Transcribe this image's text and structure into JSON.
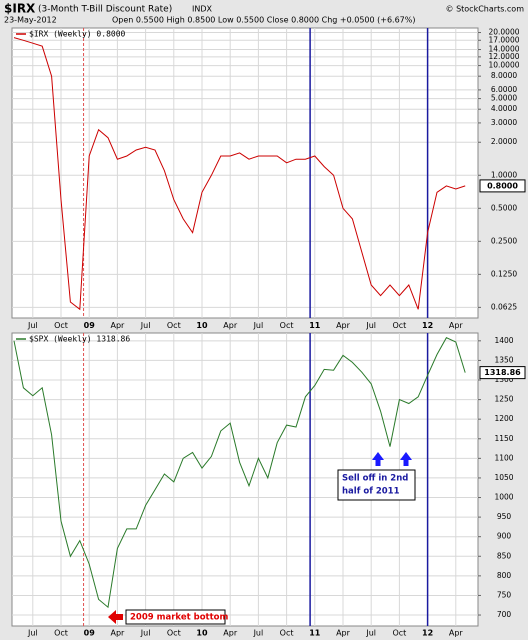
{
  "header": {
    "symbol": "$IRX",
    "name": "(3-Month T-Bill Discount Rate)",
    "exchange": "INDX",
    "date": "23-May-2012",
    "quote": "Open 0.5500  High 0.8500  Low 0.5500  Close 0.8000  Chg +0.0500 (+6.67%)",
    "source": "© StockCharts.com"
  },
  "chart_data": [
    {
      "type": "line",
      "log_scale": true,
      "grid": true,
      "categories": [
        null,
        null,
        "Jul",
        null,
        null,
        "Oct",
        null,
        null,
        "09",
        null,
        null,
        "Apr",
        null,
        null,
        "Jul",
        null,
        null,
        "Oct",
        null,
        null,
        "10",
        null,
        null,
        "Apr",
        null,
        null,
        "Jul",
        null,
        null,
        "Oct",
        null,
        null,
        "11",
        null,
        null,
        "Apr",
        null,
        null,
        "Jul",
        null,
        null,
        "Oct",
        null,
        null,
        "12",
        null,
        null,
        "Apr",
        null
      ],
      "series": [
        {
          "name": "$IRX (Weekly) 0.8000",
          "color": "#cc0000",
          "values": [
            18,
            17,
            16,
            15,
            8,
            0.6,
            0.07,
            0.06,
            1.5,
            2.6,
            2.2,
            1.4,
            1.5,
            1.7,
            1.8,
            1.7,
            1.1,
            0.6,
            0.4,
            0.3,
            0.7,
            1.0,
            1.5,
            1.5,
            1.6,
            1.4,
            1.5,
            1.5,
            1.5,
            1.3,
            1.4,
            1.4,
            1.5,
            1.2,
            1.0,
            0.5,
            0.4,
            0.2,
            0.1,
            0.08,
            0.1,
            0.08,
            0.1,
            0.06,
            0.3,
            0.7,
            0.8,
            0.75,
            0.8
          ],
          "last_label": "0.8000"
        }
      ],
      "ylim": [
        0.05,
        22
      ],
      "yticks": [
        {
          "value": 20,
          "label": "20.0000"
        },
        {
          "value": 17,
          "label": "17.0000"
        },
        {
          "value": 14,
          "label": "14.0000"
        },
        {
          "value": 12,
          "label": "12.0000"
        },
        {
          "value": 10,
          "label": "10.0000"
        },
        {
          "value": 8,
          "label": "8.0000"
        },
        {
          "value": 6,
          "label": "6.0000"
        },
        {
          "value": 5,
          "label": "5.0000"
        },
        {
          "value": 4,
          "label": "4.0000"
        },
        {
          "value": 3,
          "label": "3.0000"
        },
        {
          "value": 2,
          "label": "2.0000"
        },
        {
          "value": 1,
          "label": "1.0000"
        },
        {
          "value": 0.5,
          "label": "0.5000"
        },
        {
          "value": 0.25,
          "label": "0.2500"
        },
        {
          "value": 0.125,
          "label": "0.1250"
        },
        {
          "value": 0.0625,
          "label": "0.0625"
        }
      ]
    },
    {
      "type": "line",
      "log_scale": false,
      "grid": true,
      "categories": [
        null,
        null,
        "Jul",
        null,
        null,
        "Oct",
        null,
        null,
        "09",
        null,
        null,
        "Apr",
        null,
        null,
        "Jul",
        null,
        null,
        "Oct",
        null,
        null,
        "10",
        null,
        null,
        "Apr",
        null,
        null,
        "Jul",
        null,
        null,
        "Oct",
        null,
        null,
        "11",
        null,
        null,
        "Apr",
        null,
        null,
        "Jul",
        null,
        null,
        "Oct",
        null,
        null,
        "12",
        null,
        null,
        "Apr",
        null
      ],
      "series": [
        {
          "name": "$SPX (Weekly) 1318.86",
          "color": "#2a7a2a",
          "values": [
            1400,
            1280,
            1260,
            1280,
            1160,
            940,
            850,
            890,
            830,
            740,
            720,
            870,
            920,
            920,
            980,
            1020,
            1060,
            1040,
            1100,
            1115,
            1075,
            1105,
            1170,
            1190,
            1090,
            1030,
            1100,
            1050,
            1140,
            1185,
            1180,
            1257,
            1286,
            1327,
            1325,
            1363,
            1345,
            1320,
            1290,
            1220,
            1130,
            1250,
            1240,
            1257,
            1312,
            1365,
            1408,
            1397,
            1318.86
          ],
          "last_label": "1318.86"
        }
      ],
      "ylim": [
        672,
        1420
      ],
      "yticks": [
        700,
        750,
        800,
        850,
        900,
        950,
        1000,
        1050,
        1100,
        1150,
        1200,
        1250,
        1300,
        1350,
        1400
      ],
      "annotations": [
        [
          "Sell off in 2nd",
          "half of 2011"
        ],
        [
          "2009 market bottom"
        ]
      ]
    }
  ]
}
